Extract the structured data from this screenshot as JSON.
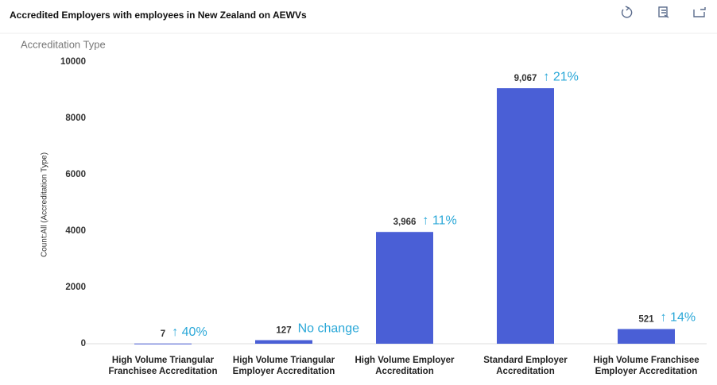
{
  "chart_data": {
    "type": "bar",
    "title": "Accredited Employers with employees in New Zealand on AEWVs",
    "subtitle": "Accreditation Type",
    "y_label": "Count:All (Accreditation Type)",
    "categories": [
      "High Volume Triangular Franchisee Accreditation",
      "High Volume Triangular Employer Accreditation",
      "High Volume Employer Accreditation",
      "Standard Employer Accreditation",
      "High Volume Franchisee Employer Accreditation"
    ],
    "values": [
      7,
      127,
      3966,
      9067,
      521
    ],
    "value_labels": [
      "7",
      "127",
      "3,966",
      "9,067",
      "521"
    ],
    "annotations": [
      "↑ 40%",
      "No change",
      "↑ 11%",
      "↑ 21%",
      "↑ 14%"
    ],
    "color": "#4a5fd6",
    "annotation_color": "#2ba8d8",
    "ylim": [
      0,
      10000
    ],
    "yticks": [
      0,
      2000,
      4000,
      6000,
      8000,
      10000
    ],
    "grid": false
  }
}
